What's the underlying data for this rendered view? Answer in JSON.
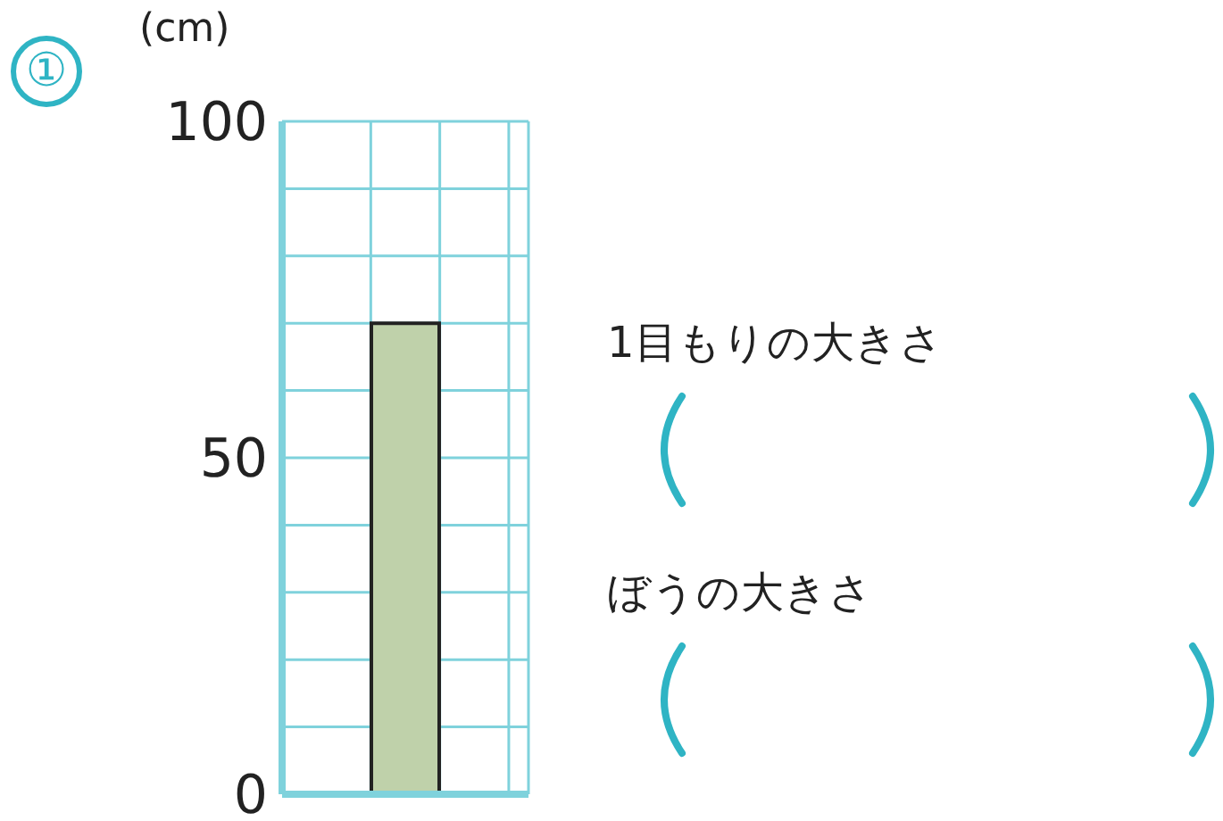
{
  "chart_data": {
    "type": "bar",
    "title": "①",
    "ylabel": "(cm)",
    "categories": [
      null
    ],
    "values": [
      70
    ],
    "color": "#bfd1aa",
    "ylim": [
      0,
      100
    ],
    "yticks": [
      0,
      {
        "value": 10,
        "label": null
      },
      {
        "value": 20,
        "label": null
      },
      {
        "value": 30,
        "label": null
      },
      {
        "value": 40,
        "label": null
      },
      50,
      {
        "value": 60,
        "label": null
      },
      {
        "value": 70,
        "label": null
      },
      {
        "value": 80,
        "label": null
      },
      {
        "value": 90,
        "label": null
      },
      100
    ],
    "grid": true,
    "tick_labels": "y",
    "annotations": [
      "1目もりの大きさ",
      "ぼうの大きさ"
    ]
  }
}
